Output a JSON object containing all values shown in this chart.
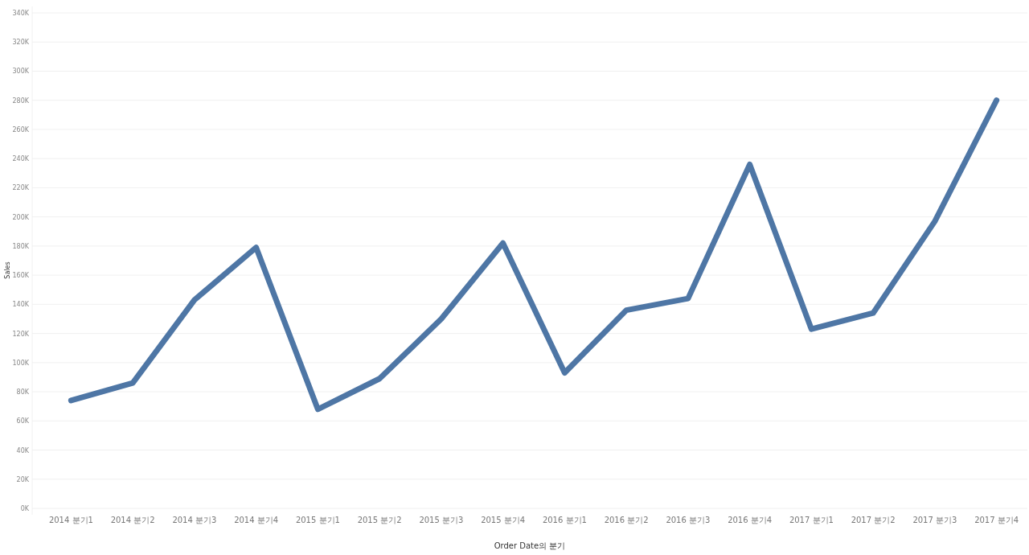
{
  "chart_data": {
    "type": "line",
    "xlabel": "Order Date의 분기",
    "ylabel": "Sales",
    "categories": [
      "2014 분기1",
      "2014 분기2",
      "2014 분기3",
      "2014 분기4",
      "2015 분기1",
      "2015 분기2",
      "2015 분기3",
      "2015 분기4",
      "2016 분기1",
      "2016 분기2",
      "2016 분기3",
      "2016 분기4",
      "2017 분기1",
      "2017 분기2",
      "2017 분기3",
      "2017 분기4"
    ],
    "series": [
      {
        "color": "#4e76a5",
        "values": [
          74000,
          86000,
          143000,
          179000,
          68000,
          89000,
          130000,
          182000,
          93000,
          136000,
          144000,
          236000,
          123000,
          134000,
          197000,
          280000
        ]
      }
    ],
    "ylim": [
      0,
      340000
    ],
    "yticks": [
      {
        "value": 0,
        "label": "0K"
      },
      {
        "value": 20000,
        "label": "20K"
      },
      {
        "value": 40000,
        "label": "40K"
      },
      {
        "value": 60000,
        "label": "60K"
      },
      {
        "value": 80000,
        "label": "80K"
      },
      {
        "value": 100000,
        "label": "100K"
      },
      {
        "value": 120000,
        "label": "120K"
      },
      {
        "value": 140000,
        "label": "140K"
      },
      {
        "value": 160000,
        "label": "160K"
      },
      {
        "value": 180000,
        "label": "180K"
      },
      {
        "value": 200000,
        "label": "200K"
      },
      {
        "value": 220000,
        "label": "220K"
      },
      {
        "value": 240000,
        "label": "240K"
      },
      {
        "value": 260000,
        "label": "260K"
      },
      {
        "value": 280000,
        "label": "280K"
      },
      {
        "value": 300000,
        "label": "300K"
      },
      {
        "value": 320000,
        "label": "320K"
      },
      {
        "value": 340000,
        "label": "340K"
      }
    ],
    "grid": "y",
    "marker": "none",
    "line_style": "solid"
  }
}
